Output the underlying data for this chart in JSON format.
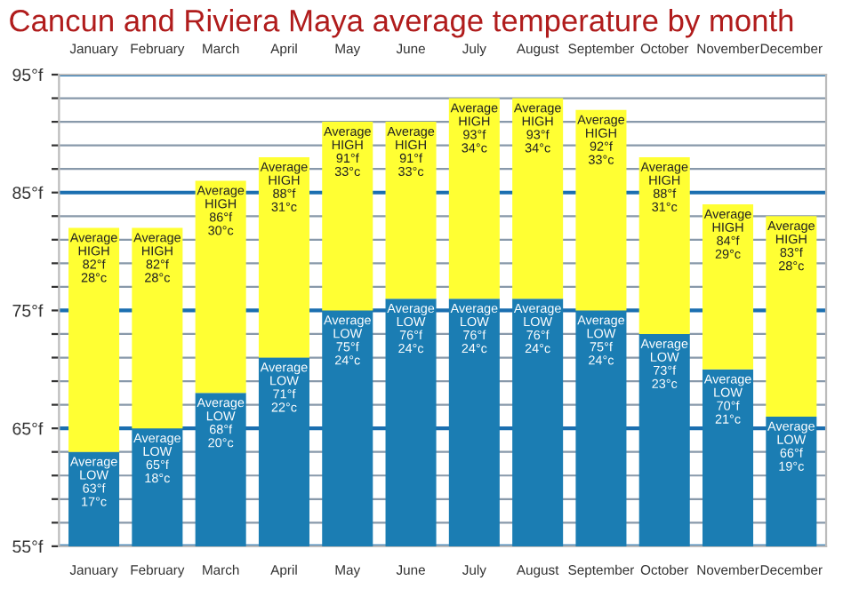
{
  "chart_data": {
    "type": "bar",
    "title": "Cancun and Riviera Maya average temperature by month",
    "categories": [
      "January",
      "February",
      "March",
      "April",
      "May",
      "June",
      "July",
      "August",
      "September",
      "October",
      "November",
      "December"
    ],
    "stacked": true,
    "series": [
      {
        "color": "#1b7db3",
        "values": [
          63,
          65,
          68,
          71,
          75,
          76,
          76,
          76,
          75,
          73,
          70,
          66
        ],
        "value_labels": [
          "Average\nLOW\n63°f\n17°c",
          "Average\nLOW\n65°f\n18°c",
          "Average\nLOW\n68°f\n20°c",
          "Average\nLOW\n71°f\n22°c",
          "Average\nLOW\n75°f\n24°c",
          "Average\nLOW\n76°f\n24°c",
          "Average\nLOW\n76°f\n24°c",
          "Average\nLOW\n76°f\n24°c",
          "Average\nLOW\n75°f\n24°c",
          "Average\nLOW\n73°f\n23°c",
          "Average\nLOW\n70°f\n21°c",
          "Average\nLOW\n66°f\n19°c"
        ]
      },
      {
        "color": "#ffff33",
        "base": [
          63,
          65,
          68,
          71,
          75,
          76,
          76,
          76,
          75,
          73,
          70,
          66
        ],
        "values": [
          19,
          17,
          18,
          17,
          16,
          15,
          17,
          17,
          17,
          15,
          14,
          17
        ],
        "value_labels": [
          "Average\nHIGH\n82°f\n28°c",
          "Average\nHIGH\n82°f\n28°c",
          "Average\nHIGH\n86°f\n30°c",
          "Average\nHIGH\n88°f\n31°c",
          "Average\nHIGH\n91°f\n33°c",
          "Average\nHIGH\n91°f\n33°c",
          "Average\nHIGH\n93°f\n34°c",
          "Average\nHIGH\n93°f\n34°c",
          "Average\nHIGH\n92°f\n33°c",
          "Average\nHIGH\n88°f\n31°c",
          "Average\nHIGH\n84°f\n29°c",
          "Average\nHIGH\n83°f\n28°c"
        ]
      }
    ],
    "ylim": [
      55,
      95
    ],
    "yticks": [
      {
        "value": 55,
        "label": "55°f"
      },
      {
        "value": 57,
        "label": null
      },
      {
        "value": 59,
        "label": null
      },
      {
        "value": 61,
        "label": null
      },
      {
        "value": 63,
        "label": null
      },
      {
        "value": 65,
        "label": "65°f"
      },
      {
        "value": 67,
        "label": null
      },
      {
        "value": 69,
        "label": null
      },
      {
        "value": 71,
        "label": null
      },
      {
        "value": 73,
        "label": null
      },
      {
        "value": 75,
        "label": "75°f"
      },
      {
        "value": 77,
        "label": null
      },
      {
        "value": 79,
        "label": null
      },
      {
        "value": 81,
        "label": null
      },
      {
        "value": 83,
        "label": null
      },
      {
        "value": 85,
        "label": "85°f"
      },
      {
        "value": 87,
        "label": null
      },
      {
        "value": 89,
        "label": null
      },
      {
        "value": 91,
        "label": null
      },
      {
        "value": 93,
        "label": null
      },
      {
        "value": 95,
        "label": "95°f"
      }
    ],
    "grid": "y",
    "legend": false
  }
}
